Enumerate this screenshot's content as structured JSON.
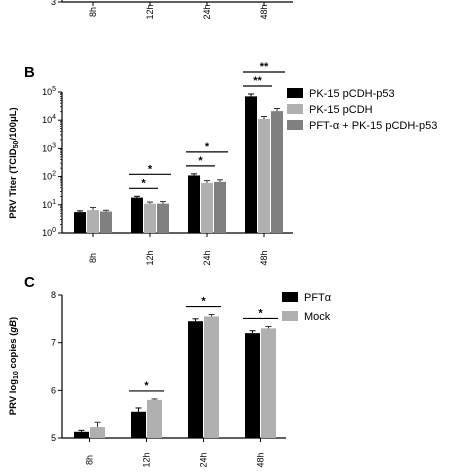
{
  "chart_data": [
    {
      "panel": "",
      "type": "bar",
      "note": "top panel, cropped at top edge",
      "categories": [
        "8h",
        "12h",
        "24h",
        "48h"
      ],
      "series": [
        {
          "values": [
            3,
            3,
            3,
            3
          ],
          "color": "#000000"
        },
        {
          "values": [
            3,
            3,
            3,
            3
          ],
          "color": "#b0b0b0"
        },
        {
          "values": [
            3,
            3,
            3,
            3
          ],
          "color": "#808080"
        }
      ],
      "yticks": [
        {
          "v": 3,
          "label": "3"
        }
      ],
      "ylim": [
        3,
        3.5
      ]
    },
    {
      "panel": "B",
      "type": "bar",
      "title": "",
      "xlabel": "",
      "ylabel": "PRV Titer (TCID₅₀/100μL)",
      "y_scale": "log",
      "ylim": [
        1,
        100000
      ],
      "categories": [
        "8h",
        "12h",
        "24h",
        "48h"
      ],
      "series": [
        {
          "name": "PK-15 pCDH-p53",
          "color": "#000000",
          "values": [
            5.5,
            18,
            110,
            70000
          ],
          "errors": [
            0.6,
            2,
            15,
            15000
          ]
        },
        {
          "name": "PK-15 pCDH",
          "color": "#b0b0b0",
          "values": [
            6.5,
            11,
            60,
            11000
          ],
          "errors": [
            1.5,
            1.5,
            12,
            2500
          ]
        },
        {
          "name": "PFT-α + PK-15 pCDH-p53",
          "color": "#808080",
          "values": [
            5.8,
            11,
            65,
            21000
          ],
          "errors": [
            0.6,
            2,
            12,
            5000
          ]
        }
      ],
      "yticks": [
        {
          "v": 1,
          "label": "10⁰"
        },
        {
          "v": 10,
          "label": "10¹"
        },
        {
          "v": 100,
          "label": "10²"
        },
        {
          "v": 1000,
          "label": "10³"
        },
        {
          "v": 10000,
          "label": "10⁴"
        },
        {
          "v": 100000,
          "label": "10⁵"
        }
      ],
      "annotations": [
        {
          "group": 1,
          "from": 0,
          "to": 1,
          "level": 0,
          "label": "*"
        },
        {
          "group": 1,
          "from": 0,
          "to": 2,
          "level": 1,
          "label": "*"
        },
        {
          "group": 2,
          "from": 0,
          "to": 1,
          "level": 0,
          "label": "*"
        },
        {
          "group": 2,
          "from": 0,
          "to": 2,
          "level": 1,
          "label": "*"
        },
        {
          "group": 3,
          "from": 0,
          "to": 1,
          "level": 0,
          "label": "**"
        },
        {
          "group": 3,
          "from": 0,
          "to": 2,
          "level": 1,
          "label": "**"
        }
      ]
    },
    {
      "panel": "C",
      "type": "bar",
      "title": "",
      "xlabel": "",
      "ylabel": "PRV log₁₀ copies (gB)",
      "ylim": [
        5,
        8
      ],
      "categories": [
        "8h",
        "12h",
        "24h",
        "48h"
      ],
      "series": [
        {
          "name": "PFTα",
          "color": "#000000",
          "values": [
            5.13,
            5.55,
            7.45,
            7.2
          ],
          "errors": [
            0.03,
            0.08,
            0.05,
            0.05
          ]
        },
        {
          "name": "Mock",
          "color": "#b0b0b0",
          "values": [
            5.23,
            5.8,
            7.55,
            7.3
          ],
          "errors": [
            0.1,
            0.02,
            0.04,
            0.04
          ]
        }
      ],
      "yticks": [
        {
          "v": 5,
          "label": "5"
        },
        {
          "v": 6,
          "label": "6"
        },
        {
          "v": 7,
          "label": "7"
        },
        {
          "v": 8,
          "label": "8"
        }
      ],
      "annotations": [
        {
          "group": 1,
          "from": 0,
          "to": 1,
          "level": 0,
          "label": "*"
        },
        {
          "group": 2,
          "from": 0,
          "to": 1,
          "level": 0,
          "label": "*"
        },
        {
          "group": 3,
          "from": 0,
          "to": 1,
          "level": 0,
          "label": "*"
        }
      ]
    }
  ]
}
